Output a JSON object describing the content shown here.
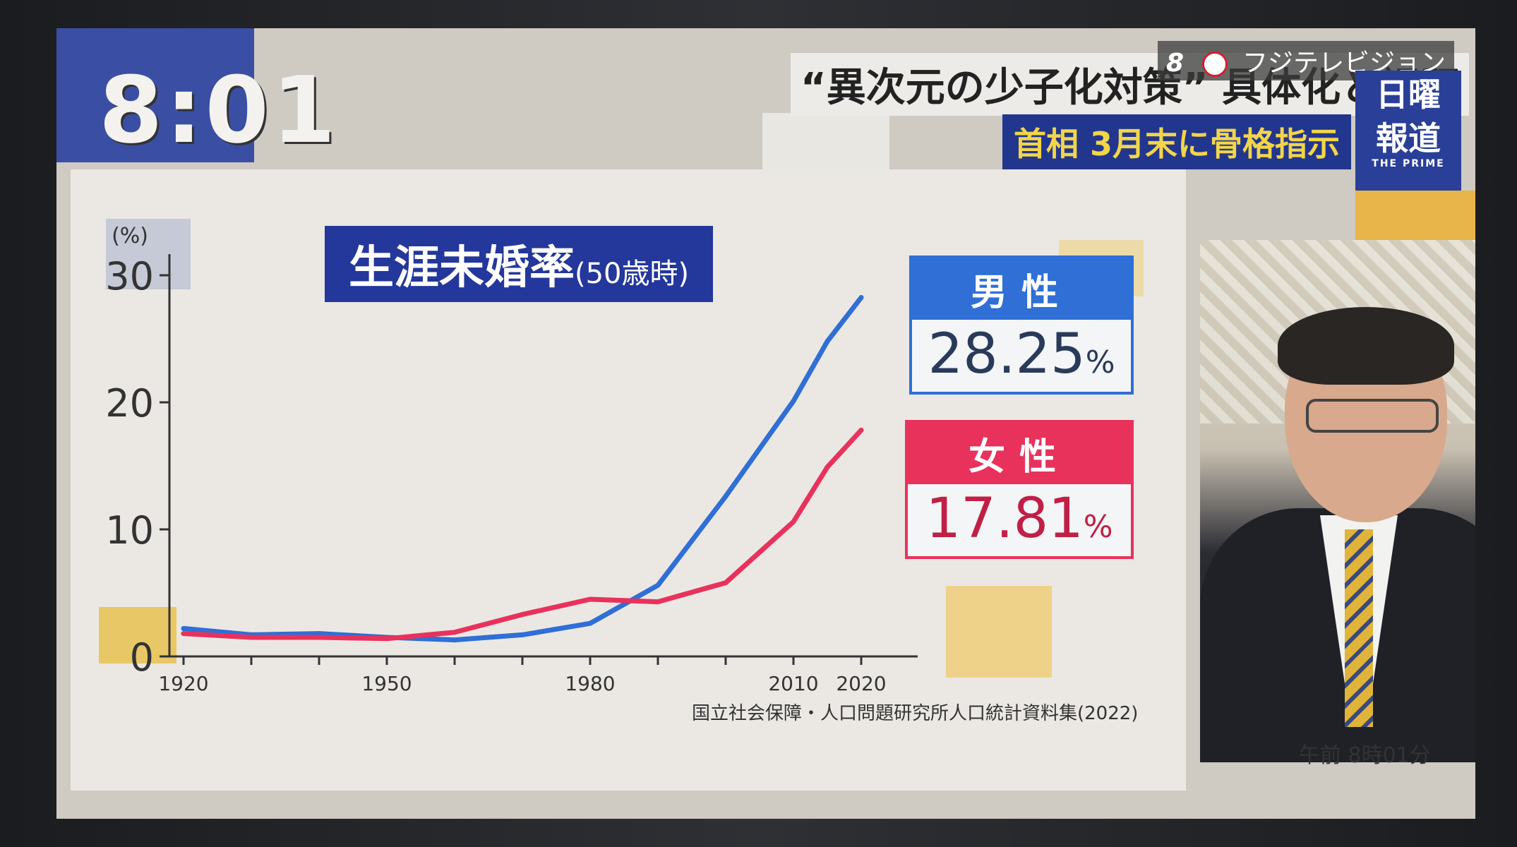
{
  "screen": {
    "clock": "8:01",
    "headline": "“異次元の少子化対策” 具体化と課題",
    "subheadline": "首相 3月末に骨格指示",
    "channel": {
      "number": "8",
      "name": "フジテレビジョン"
    },
    "program": {
      "line1": "日曜",
      "line2": "報道",
      "tagline": "THE PRIME"
    },
    "timestamp": "午前 8時01分"
  },
  "colors": {
    "male": "#2f6fd6",
    "female": "#e8325c",
    "title_bg": "#24379a"
  },
  "chart_data": {
    "type": "line",
    "title": "生涯未婚率",
    "subtitle": "(50歳時)",
    "ylabel": "(%)",
    "ylim": [
      0,
      30
    ],
    "xlim": [
      1920,
      2020
    ],
    "yticks": [
      "0",
      "10",
      "20",
      "30"
    ],
    "xticks": [
      "1920",
      "1950",
      "1980",
      "2010",
      "2020"
    ],
    "xtick_values": [
      1920,
      1950,
      1980,
      2010,
      2020
    ],
    "grid": false,
    "legend_placement": "right",
    "source": "国立社会保障・人口問題研究所人口統計資料集(2022)",
    "series": [
      {
        "name": "男性",
        "label": "28.25",
        "unit": "%",
        "x": [
          1920,
          1930,
          1940,
          1950,
          1960,
          1970,
          1980,
          1990,
          2000,
          2010,
          2015,
          2020
        ],
        "values": [
          2.2,
          1.7,
          1.8,
          1.5,
          1.3,
          1.7,
          2.6,
          5.6,
          12.6,
          20.1,
          24.8,
          28.25
        ]
      },
      {
        "name": "女性",
        "label": "17.81",
        "unit": "%",
        "x": [
          1920,
          1930,
          1940,
          1950,
          1960,
          1970,
          1980,
          1990,
          2000,
          2010,
          2015,
          2020
        ],
        "values": [
          1.8,
          1.5,
          1.5,
          1.4,
          1.9,
          3.3,
          4.5,
          4.3,
          5.8,
          10.6,
          14.9,
          17.81
        ]
      }
    ]
  }
}
